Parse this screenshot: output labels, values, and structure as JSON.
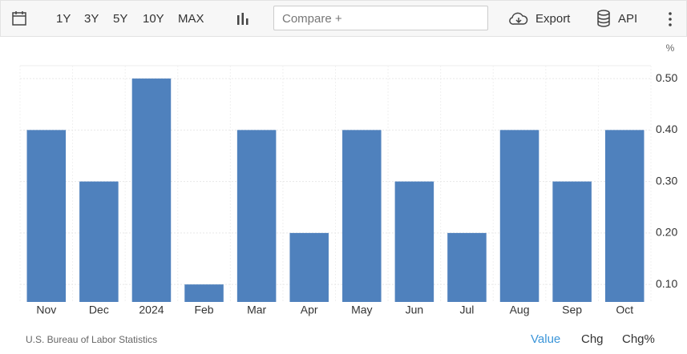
{
  "toolbar": {
    "ranges": [
      "1Y",
      "3Y",
      "5Y",
      "10Y",
      "MAX"
    ],
    "compare": "Compare +",
    "export": "Export",
    "api": "API"
  },
  "chart_data": {
    "type": "bar",
    "unit": "%",
    "categories": [
      "Nov",
      "Dec",
      "2024",
      "Feb",
      "Mar",
      "Apr",
      "May",
      "Jun",
      "Jul",
      "Aug",
      "Sep",
      "Oct"
    ],
    "values": [
      0.4,
      0.3,
      0.5,
      0.1,
      0.4,
      0.2,
      0.4,
      0.3,
      0.2,
      0.4,
      0.3,
      0.4
    ],
    "color": "#4f81bd",
    "ylim": [
      0.066,
      0.525
    ],
    "yticks": [
      {
        "value": 0.1,
        "label": "0.10"
      },
      {
        "value": 0.2,
        "label": "0.20"
      },
      {
        "value": 0.3,
        "label": "0.30"
      },
      {
        "value": 0.4,
        "label": "0.40"
      },
      {
        "value": 0.5,
        "label": "0.50"
      }
    ],
    "grid": true
  },
  "footer": {
    "source": "U.S. Bureau of Labor Statistics",
    "tabs": [
      "Value",
      "Chg",
      "Chg%"
    ]
  }
}
